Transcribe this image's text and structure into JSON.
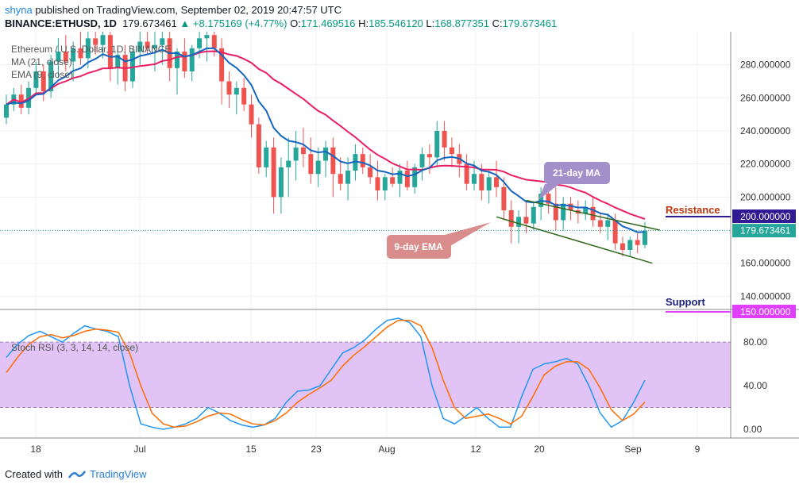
{
  "header": {
    "author": "shyna",
    "published": "published on TradingView.com, September 02, 2019 20:47:57 UTC",
    "symbol": "BINANCE:ETHUSD, 1D",
    "price": "179.673461",
    "change": "+8.175169 (+4.77%)",
    "o_label": "O:",
    "o": "171.469516",
    "h_label": "H:",
    "h": "185.546120",
    "l_label": "L:",
    "l": "168.877351",
    "c_label": "C:",
    "c": "179.673461"
  },
  "legend": {
    "title": "Ethereum / U.S. Dollar, 1D, BINANCE",
    "ma": "MA (21, close)",
    "ema": "EMA (9, close)"
  },
  "annotations": {
    "ma21": "21-day MA",
    "ema9": "9-day EMA",
    "resistance": "Resistance",
    "support": "Support",
    "resistance_value": "200.000000",
    "support_value": "150.000000",
    "last_price": "179.673461"
  },
  "rsi": {
    "title": "Stoch RSI (3, 3, 14, 14, close)"
  },
  "footer": {
    "created_with": "Created with",
    "brand": "TradingView"
  },
  "colors": {
    "up": "#26a69a",
    "down": "#ef5350",
    "ma": "#e91e63",
    "ema": "#1565c0",
    "channel": "#33691e",
    "resistance_tag": "#311b92",
    "support_tag": "#e040fb",
    "resistance_text": "#bf360c",
    "support_text": "#1a237e",
    "rsi_band": "#e1c4f5",
    "stoch_k": "#2196f3",
    "stoch_d": "#ff6d00",
    "ma_callout": "#a38fc9",
    "ema_callout": "#d98c8c"
  },
  "chart_data": [
    {
      "type": "candlestick",
      "title": "Ethereum / U.S. Dollar, 1D, BINANCE",
      "x_labels": [
        "18",
        "Jul",
        "15",
        "23",
        "Aug",
        "12",
        "20",
        "Sep",
        "9"
      ],
      "y_ticks": [
        "140.000000",
        "160.000000",
        "180.000000",
        "200.000000",
        "220.000000",
        "240.000000",
        "260.000000",
        "280.000000"
      ],
      "ylim": [
        132,
        300
      ],
      "candles": [
        [
          248,
          262,
          244,
          256
        ],
        [
          256,
          266,
          252,
          262
        ],
        [
          262,
          268,
          250,
          254
        ],
        [
          254,
          270,
          250,
          266
        ],
        [
          266,
          282,
          262,
          276
        ],
        [
          276,
          280,
          258,
          264
        ],
        [
          264,
          286,
          260,
          282
        ],
        [
          282,
          296,
          272,
          288
        ],
        [
          288,
          298,
          276,
          282
        ],
        [
          282,
          294,
          270,
          290
        ],
        [
          290,
          300,
          280,
          284
        ],
        [
          284,
          300,
          278,
          296
        ],
        [
          296,
          300,
          286,
          292
        ],
        [
          292,
          300,
          284,
          298
        ],
        [
          298,
          300,
          270,
          278
        ],
        [
          278,
          290,
          268,
          286
        ],
        [
          286,
          292,
          264,
          270
        ],
        [
          270,
          290,
          266,
          288
        ],
        [
          288,
          300,
          280,
          294
        ],
        [
          294,
          300,
          286,
          290
        ],
        [
          290,
          300,
          276,
          292
        ],
        [
          292,
          300,
          280,
          296
        ],
        [
          296,
          300,
          270,
          278
        ],
        [
          278,
          290,
          262,
          288
        ],
        [
          288,
          296,
          272,
          276
        ],
        [
          276,
          292,
          270,
          290
        ],
        [
          290,
          300,
          284,
          296
        ],
        [
          296,
          300,
          282,
          298
        ],
        [
          298,
          300,
          285,
          290
        ],
        [
          290,
          296,
          256,
          270
        ],
        [
          270,
          276,
          254,
          262
        ],
        [
          262,
          270,
          250,
          266
        ],
        [
          266,
          272,
          252,
          256
        ],
        [
          256,
          262,
          236,
          244
        ],
        [
          244,
          248,
          214,
          218
        ],
        [
          218,
          234,
          212,
          230
        ],
        [
          230,
          236,
          190,
          200
        ],
        [
          200,
          224,
          190,
          218
        ],
        [
          218,
          236,
          200,
          222
        ],
        [
          222,
          240,
          210,
          230
        ],
        [
          230,
          242,
          218,
          226
        ],
        [
          226,
          236,
          208,
          214
        ],
        [
          214,
          230,
          206,
          222
        ],
        [
          222,
          234,
          212,
          230
        ],
        [
          230,
          236,
          200,
          214
        ],
        [
          214,
          224,
          204,
          208
        ],
        [
          208,
          224,
          198,
          216
        ],
        [
          216,
          232,
          210,
          226
        ],
        [
          226,
          230,
          214,
          218
        ],
        [
          218,
          226,
          208,
          212
        ],
        [
          212,
          222,
          198,
          204
        ],
        [
          204,
          214,
          198,
          212
        ],
        [
          212,
          218,
          206,
          208
        ],
        [
          208,
          220,
          200,
          216
        ],
        [
          216,
          222,
          204,
          206
        ],
        [
          206,
          220,
          202,
          218
        ],
        [
          218,
          230,
          210,
          226
        ],
        [
          226,
          232,
          214,
          224
        ],
        [
          224,
          246,
          218,
          240
        ],
        [
          240,
          246,
          222,
          230
        ],
        [
          230,
          236,
          218,
          226
        ],
        [
          226,
          232,
          212,
          220
        ],
        [
          220,
          226,
          204,
          208
        ],
        [
          208,
          222,
          204,
          214
        ],
        [
          214,
          220,
          198,
          204
        ],
        [
          204,
          216,
          196,
          212
        ],
        [
          212,
          222,
          200,
          206
        ],
        [
          206,
          212,
          186,
          192
        ],
        [
          192,
          198,
          172,
          182
        ],
        [
          182,
          192,
          172,
          188
        ],
        [
          188,
          198,
          178,
          184
        ],
        [
          184,
          196,
          180,
          194
        ],
        [
          194,
          206,
          186,
          202
        ],
        [
          202,
          208,
          190,
          196
        ],
        [
          196,
          206,
          180,
          186
        ],
        [
          186,
          200,
          180,
          196
        ],
        [
          196,
          200,
          186,
          192
        ],
        [
          192,
          198,
          184,
          190
        ],
        [
          190,
          198,
          186,
          194
        ],
        [
          194,
          200,
          182,
          186
        ],
        [
          186,
          190,
          178,
          182
        ],
        [
          182,
          190,
          174,
          186
        ],
        [
          186,
          190,
          168,
          172
        ],
        [
          172,
          176,
          164,
          168
        ],
        [
          168,
          176,
          164,
          174
        ],
        [
          174,
          178,
          166,
          171
        ],
        [
          171,
          185,
          169,
          179.7
        ]
      ]
    },
    {
      "type": "line",
      "title": "Stoch RSI (3, 3, 14, 14, close)",
      "y_ticks": [
        "0.00",
        "40.00",
        "80.00"
      ],
      "ylim": [
        -8,
        110
      ],
      "band": [
        20,
        80
      ],
      "series": [
        {
          "name": "K",
          "values": [
            66,
            78,
            86,
            90,
            85,
            80,
            88,
            95,
            92,
            90,
            85,
            40,
            5,
            2,
            0,
            2,
            5,
            10,
            20,
            15,
            8,
            4,
            2,
            4,
            10,
            25,
            35,
            36,
            40,
            55,
            70,
            75,
            82,
            92,
            100,
            102,
            98,
            85,
            40,
            10,
            5,
            12,
            20,
            10,
            2,
            2,
            30,
            55,
            60,
            62,
            65,
            60,
            40,
            15,
            2,
            8,
            25,
            45
          ]
        },
        {
          "name": "D",
          "values": [
            52,
            66,
            78,
            85,
            87,
            84,
            86,
            90,
            92,
            91,
            89,
            70,
            40,
            15,
            5,
            2,
            3,
            7,
            12,
            15,
            14,
            9,
            5,
            4,
            8,
            15,
            25,
            32,
            38,
            45,
            58,
            68,
            76,
            85,
            94,
            100,
            100,
            95,
            75,
            45,
            20,
            10,
            12,
            14,
            10,
            5,
            12,
            30,
            50,
            58,
            62,
            62,
            55,
            38,
            18,
            8,
            14,
            25
          ]
        }
      ]
    }
  ]
}
